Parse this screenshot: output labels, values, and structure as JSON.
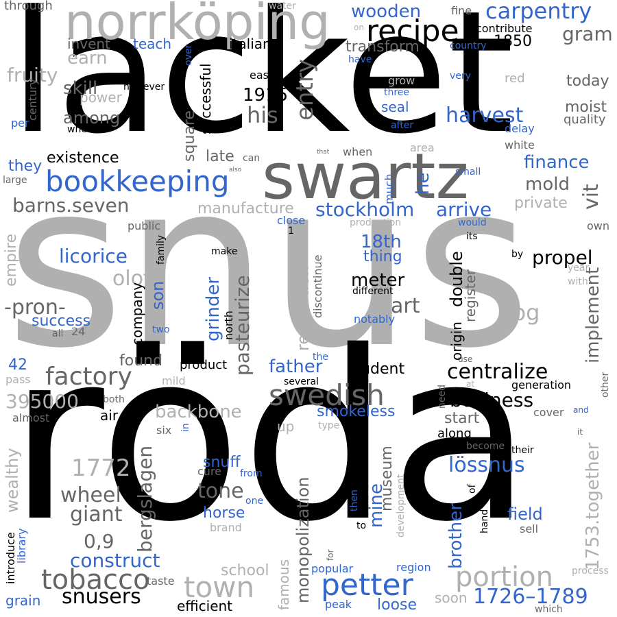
{
  "palette": {
    "black": "#000000",
    "dark": "#666666",
    "light": "#b0b0b0",
    "blue": "#3366cc"
  },
  "words": [
    {
      "text": "snus",
      "color": "light"
    },
    {
      "text": "röda",
      "color": "black"
    },
    {
      "text": "lacket",
      "color": "black"
    },
    {
      "text": "swartz",
      "color": "dark"
    },
    {
      "text": "norrköping",
      "color": "light"
    },
    {
      "text": "recipe",
      "color": "black"
    },
    {
      "text": "bookkeeping",
      "color": "blue"
    },
    {
      "text": "petter",
      "color": "blue"
    },
    {
      "text": "swedish",
      "color": "dark"
    },
    {
      "text": "tobacco",
      "color": "dark"
    },
    {
      "text": "factory",
      "color": "dark"
    },
    {
      "text": "town",
      "color": "light"
    },
    {
      "text": "portion",
      "color": "light"
    },
    {
      "text": "carpentry",
      "color": "blue"
    },
    {
      "text": "wooden",
      "color": "blue"
    },
    {
      "text": "harvest",
      "color": "blue"
    },
    {
      "text": "centralize",
      "color": "black"
    },
    {
      "text": "business",
      "color": "black"
    },
    {
      "text": "snusers",
      "color": "black"
    },
    {
      "text": "1726–1789",
      "color": "blue"
    },
    {
      "text": "stockholm",
      "color": "blue"
    },
    {
      "text": "arrive",
      "color": "blue"
    },
    {
      "text": "finance",
      "color": "blue"
    },
    {
      "text": "barns.seven",
      "color": "dark"
    },
    {
      "text": "-pron-",
      "color": "dark"
    },
    {
      "text": "licorice",
      "color": "blue"
    },
    {
      "text": "propel",
      "color": "black"
    },
    {
      "text": "cog",
      "color": "light"
    },
    {
      "text": "construct",
      "color": "blue"
    },
    {
      "text": "lössnus",
      "color": "blue"
    },
    {
      "text": "gram",
      "color": "dark"
    },
    {
      "text": "1850",
      "color": "black"
    },
    {
      "text": "1915",
      "color": "black"
    },
    {
      "text": "his",
      "color": "dark"
    },
    {
      "text": "entry",
      "color": "dark"
    },
    {
      "text": "olof",
      "color": "light"
    },
    {
      "text": "395000",
      "color": "light"
    },
    {
      "text": "1772",
      "color": "light"
    },
    {
      "text": "backbone",
      "color": "light"
    },
    {
      "text": "wheel",
      "color": "dark"
    },
    {
      "text": "giant",
      "color": "dark"
    },
    {
      "text": "0,9",
      "color": "dark"
    },
    {
      "text": "tone",
      "color": "dark"
    },
    {
      "text": "bergslagen",
      "color": "dark"
    },
    {
      "text": "monopolization",
      "color": "dark"
    },
    {
      "text": "pasteurize",
      "color": "dark"
    },
    {
      "text": "1753.together",
      "color": "light"
    },
    {
      "text": "implement",
      "color": "dark"
    },
    {
      "text": "father",
      "color": "blue"
    },
    {
      "text": "student",
      "color": "black"
    },
    {
      "text": "smokeless",
      "color": "blue"
    },
    {
      "text": "18th",
      "color": "blue"
    },
    {
      "text": "thing",
      "color": "blue"
    },
    {
      "text": "meter",
      "color": "black"
    },
    {
      "text": "art",
      "color": "dark"
    },
    {
      "text": "success",
      "color": "blue"
    },
    {
      "text": "son",
      "color": "blue"
    },
    {
      "text": "grinder",
      "color": "blue"
    },
    {
      "text": "double",
      "color": "black"
    },
    {
      "text": "mold",
      "color": "dark"
    },
    {
      "text": "vit",
      "color": "dark"
    },
    {
      "text": "he",
      "color": "blue"
    },
    {
      "text": "private",
      "color": "light"
    },
    {
      "text": "manufacture",
      "color": "light"
    },
    {
      "text": "late",
      "color": "dark"
    },
    {
      "text": "existence",
      "color": "black"
    },
    {
      "text": "complex",
      "color": "blue"
    },
    {
      "text": "they",
      "color": "blue"
    },
    {
      "text": "skill",
      "color": "dark"
    },
    {
      "text": "among",
      "color": "dark"
    },
    {
      "text": "earn",
      "color": "light"
    },
    {
      "text": "invent",
      "color": "dark"
    },
    {
      "text": "teach",
      "color": "blue"
    },
    {
      "text": "italian",
      "color": "black"
    },
    {
      "text": "transform",
      "color": "dark"
    },
    {
      "text": "contribute",
      "color": "black"
    },
    {
      "text": "fine",
      "color": "dark"
    },
    {
      "text": "country",
      "color": "blue"
    },
    {
      "text": "today",
      "color": "dark"
    },
    {
      "text": "moist",
      "color": "dark"
    },
    {
      "text": "quality",
      "color": "dark"
    },
    {
      "text": "delay",
      "color": "blue"
    },
    {
      "text": "white",
      "color": "dark"
    },
    {
      "text": "red",
      "color": "light"
    },
    {
      "text": "very",
      "color": "blue"
    },
    {
      "text": "seal",
      "color": "blue"
    },
    {
      "text": "three",
      "color": "blue"
    },
    {
      "text": "after",
      "color": "blue"
    },
    {
      "text": "grow",
      "color": "light"
    },
    {
      "text": "easy",
      "color": "black"
    },
    {
      "text": "have",
      "color": "blue"
    },
    {
      "text": "square",
      "color": "dark"
    },
    {
      "text": "successful",
      "color": "black"
    },
    {
      "text": "fruity",
      "color": "light"
    },
    {
      "text": "century",
      "color": "dark"
    },
    {
      "text": "power",
      "color": "light"
    },
    {
      "text": "however",
      "color": "black"
    },
    {
      "text": "where",
      "color": "black"
    },
    {
      "text": "per",
      "color": "blue"
    },
    {
      "text": "through",
      "color": "dark"
    },
    {
      "text": "water",
      "color": "light"
    },
    {
      "text": "on",
      "color": "light"
    },
    {
      "text": "over",
      "color": "blue"
    },
    {
      "text": "large",
      "color": "dark"
    },
    {
      "text": "empire",
      "color": "light"
    },
    {
      "text": "public",
      "color": "dark"
    },
    {
      "text": "family",
      "color": "black"
    },
    {
      "text": "make",
      "color": "black"
    },
    {
      "text": "close",
      "color": "blue"
    },
    {
      "text": "1",
      "color": "black"
    },
    {
      "text": "production",
      "color": "light"
    },
    {
      "text": "would",
      "color": "blue"
    },
    {
      "text": "its",
      "color": "black"
    },
    {
      "text": "own",
      "color": "dark"
    },
    {
      "text": "by",
      "color": "black"
    },
    {
      "text": "year",
      "color": "light"
    },
    {
      "text": "with",
      "color": "light"
    },
    {
      "text": "much",
      "color": "blue"
    },
    {
      "text": "area",
      "color": "light"
    },
    {
      "text": "small",
      "color": "blue"
    },
    {
      "text": "when",
      "color": "dark"
    },
    {
      "text": "can",
      "color": "dark"
    },
    {
      "text": "also",
      "color": "dark"
    },
    {
      "text": "that",
      "color": "dark"
    },
    {
      "text": "discontinue",
      "color": "dark"
    },
    {
      "text": "reputation",
      "color": "light"
    },
    {
      "text": "different",
      "color": "black"
    },
    {
      "text": "notably",
      "color": "blue"
    },
    {
      "text": "register",
      "color": "dark"
    },
    {
      "text": "origin",
      "color": "black"
    },
    {
      "text": "company",
      "color": "black"
    },
    {
      "text": "north",
      "color": "black"
    },
    {
      "text": "all",
      "color": "dark"
    },
    {
      "text": "24",
      "color": "dark"
    },
    {
      "text": "two",
      "color": "blue"
    },
    {
      "text": "found",
      "color": "dark"
    },
    {
      "text": "product",
      "color": "black"
    },
    {
      "text": "the",
      "color": "blue"
    },
    {
      "text": "several",
      "color": "black"
    },
    {
      "text": "use",
      "color": "dark"
    },
    {
      "text": "generation",
      "color": "black"
    },
    {
      "text": "other",
      "color": "dark"
    },
    {
      "text": "42",
      "color": "blue"
    },
    {
      "text": "pass",
      "color": "light"
    },
    {
      "text": "mild",
      "color": "light"
    },
    {
      "text": "both",
      "color": "dark"
    },
    {
      "text": "almost",
      "color": "dark"
    },
    {
      "text": "old",
      "color": "black"
    },
    {
      "text": "air",
      "color": "black"
    },
    {
      "text": "six",
      "color": "dark"
    },
    {
      "text": "in",
      "color": "blue"
    },
    {
      "text": "up",
      "color": "light"
    },
    {
      "text": "type",
      "color": "light"
    },
    {
      "text": "start",
      "color": "dark"
    },
    {
      "text": "along",
      "color": "black"
    },
    {
      "text": "need",
      "color": "dark"
    },
    {
      "text": "at",
      "color": "light"
    },
    {
      "text": "cover",
      "color": "dark"
    },
    {
      "text": "and",
      "color": "blue"
    },
    {
      "text": "it",
      "color": "dark"
    },
    {
      "text": "become",
      "color": "dark"
    },
    {
      "text": "their",
      "color": "black"
    },
    {
      "text": "wealthy",
      "color": "light"
    },
    {
      "text": "snuff",
      "color": "blue"
    },
    {
      "text": "cure",
      "color": "dark"
    },
    {
      "text": "from",
      "color": "blue"
    },
    {
      "text": "horse",
      "color": "blue"
    },
    {
      "text": "one",
      "color": "blue"
    },
    {
      "text": "brand",
      "color": "light"
    },
    {
      "text": "mine",
      "color": "blue"
    },
    {
      "text": "museum",
      "color": "dark"
    },
    {
      "text": "then",
      "color": "blue"
    },
    {
      "text": "to",
      "color": "black"
    },
    {
      "text": "development",
      "color": "light"
    },
    {
      "text": "brother",
      "color": "blue"
    },
    {
      "text": "of",
      "color": "black"
    },
    {
      "text": "hand",
      "color": "black"
    },
    {
      "text": "field",
      "color": "blue"
    },
    {
      "text": "sell",
      "color": "dark"
    },
    {
      "text": "introduce",
      "color": "black"
    },
    {
      "text": "library",
      "color": "blue"
    },
    {
      "text": "school",
      "color": "light"
    },
    {
      "text": "famous",
      "color": "light"
    },
    {
      "text": "for",
      "color": "dark"
    },
    {
      "text": "popular",
      "color": "blue"
    },
    {
      "text": "region",
      "color": "blue"
    },
    {
      "text": "process",
      "color": "light"
    },
    {
      "text": "grain",
      "color": "blue"
    },
    {
      "text": "taste",
      "color": "dark"
    },
    {
      "text": "efficient",
      "color": "black"
    },
    {
      "text": "peak",
      "color": "blue"
    },
    {
      "text": "loose",
      "color": "blue"
    },
    {
      "text": "soon",
      "color": "light"
    },
    {
      "text": "which",
      "color": "dark"
    }
  ]
}
